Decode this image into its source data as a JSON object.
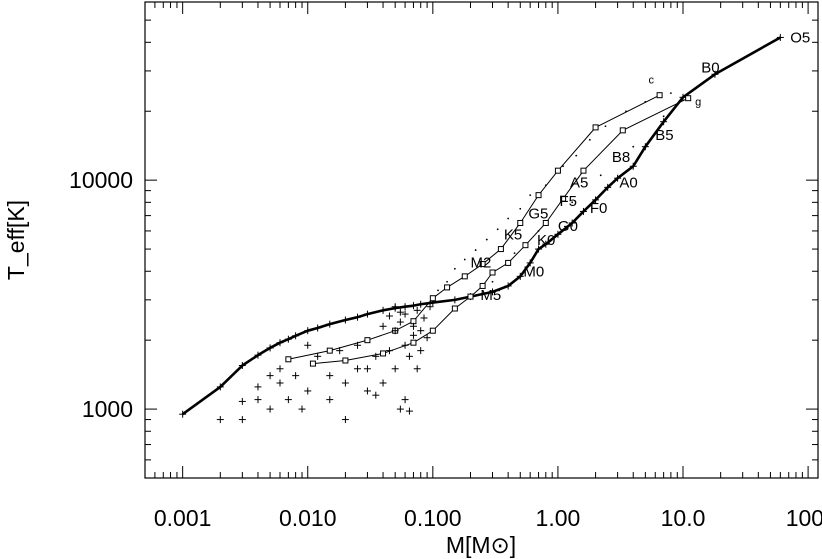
{
  "chart_data": {
    "type": "scatter",
    "title": "",
    "xlabel": "M[M⊙]",
    "ylabel": "T_eff[K]",
    "xscale": "log",
    "yscale": "log",
    "xlim": [
      0.0005,
      120
    ],
    "ylim": [
      500,
      60000
    ],
    "grid": false,
    "x_tick_labels": [
      {
        "value": 0.001,
        "label": "0.001"
      },
      {
        "value": 0.01,
        "label": "0.010"
      },
      {
        "value": 0.1,
        "label": "0.100"
      },
      {
        "value": 1,
        "label": "1.00"
      },
      {
        "value": 10,
        "label": "10.0"
      },
      {
        "value": 100,
        "label": "100."
      }
    ],
    "y_tick_labels": [
      {
        "value": 1000,
        "label": "1000"
      },
      {
        "value": 10000,
        "label": "10000"
      }
    ],
    "series": [
      {
        "kind": "thick-line",
        "marker": "plus",
        "points": [
          [
            0.001,
            950
          ],
          [
            0.002,
            1250
          ],
          [
            0.003,
            1550
          ],
          [
            0.004,
            1720
          ],
          [
            0.005,
            1850
          ],
          [
            0.006,
            1950
          ],
          [
            0.007,
            2020
          ],
          [
            0.008,
            2090
          ],
          [
            0.01,
            2200
          ],
          [
            0.012,
            2260
          ],
          [
            0.015,
            2350
          ],
          [
            0.02,
            2450
          ],
          [
            0.025,
            2520
          ],
          [
            0.03,
            2600
          ],
          [
            0.04,
            2700
          ],
          [
            0.05,
            2760
          ],
          [
            0.06,
            2800
          ],
          [
            0.07,
            2830
          ],
          [
            0.08,
            2870
          ],
          [
            0.1,
            2920
          ],
          [
            0.15,
            3000
          ],
          [
            0.2,
            3100
          ],
          [
            0.3,
            3250
          ],
          [
            0.4,
            3450
          ],
          [
            0.5,
            3800
          ],
          [
            0.6,
            4350
          ],
          [
            0.7,
            5000
          ],
          [
            0.8,
            5250
          ],
          [
            1.0,
            5800
          ],
          [
            1.3,
            6500
          ],
          [
            1.6,
            7300
          ],
          [
            2.0,
            8200
          ],
          [
            2.5,
            9300
          ],
          [
            3.0,
            10200
          ],
          [
            4.0,
            11500
          ],
          [
            5.0,
            14000
          ],
          [
            7.0,
            18000
          ],
          [
            10.0,
            23000
          ],
          [
            18.0,
            29000
          ],
          [
            60.0,
            42000
          ]
        ]
      },
      {
        "kind": "thin-line",
        "name_label": "c",
        "marker": "square",
        "points": [
          [
            0.007,
            1650
          ],
          [
            0.015,
            1800
          ],
          [
            0.03,
            2000
          ],
          [
            0.05,
            2200
          ],
          [
            0.07,
            2420
          ],
          [
            0.1,
            3050
          ],
          [
            0.13,
            3400
          ],
          [
            0.18,
            3800
          ],
          [
            0.25,
            4300
          ],
          [
            0.35,
            5000
          ],
          [
            0.5,
            6500
          ],
          [
            0.7,
            8600
          ],
          [
            1.0,
            11000
          ],
          [
            2.0,
            17000
          ],
          [
            6.5,
            23500
          ]
        ]
      },
      {
        "kind": "thin-line",
        "name_label": "g",
        "marker": "square",
        "points": [
          [
            0.011,
            1580
          ],
          [
            0.02,
            1630
          ],
          [
            0.04,
            1750
          ],
          [
            0.07,
            1950
          ],
          [
            0.1,
            2200
          ],
          [
            0.15,
            2750
          ],
          [
            0.2,
            3100
          ],
          [
            0.25,
            3450
          ],
          [
            0.3,
            3950
          ],
          [
            0.4,
            4350
          ],
          [
            0.55,
            5200
          ],
          [
            0.8,
            6500
          ],
          [
            1.1,
            8300
          ],
          [
            1.6,
            11000
          ],
          [
            3.3,
            16500
          ],
          [
            11.0,
            22800
          ]
        ]
      },
      {
        "kind": "scatter",
        "marker": "plus",
        "points": [
          [
            0.002,
            900
          ],
          [
            0.003,
            900
          ],
          [
            0.003,
            1080
          ],
          [
            0.004,
            1250
          ],
          [
            0.004,
            1100
          ],
          [
            0.005,
            1400
          ],
          [
            0.005,
            1000
          ],
          [
            0.006,
            1300
          ],
          [
            0.006,
            1500
          ],
          [
            0.007,
            1100
          ],
          [
            0.008,
            1400
          ],
          [
            0.009,
            1000
          ],
          [
            0.01,
            1200
          ],
          [
            0.01,
            1900
          ],
          [
            0.012,
            1700
          ],
          [
            0.015,
            1400
          ],
          [
            0.015,
            1100
          ],
          [
            0.018,
            1800
          ],
          [
            0.02,
            900
          ],
          [
            0.02,
            1300
          ],
          [
            0.025,
            1500
          ],
          [
            0.025,
            1900
          ],
          [
            0.03,
            1200
          ],
          [
            0.03,
            1500
          ],
          [
            0.035,
            1700
          ],
          [
            0.035,
            1150
          ],
          [
            0.04,
            1300
          ],
          [
            0.045,
            1800
          ],
          [
            0.05,
            1500
          ],
          [
            0.05,
            2200
          ],
          [
            0.055,
            1000
          ],
          [
            0.055,
            2400
          ],
          [
            0.06,
            1100
          ],
          [
            0.06,
            1900
          ],
          [
            0.06,
            2600
          ],
          [
            0.065,
            1700
          ],
          [
            0.07,
            2100
          ],
          [
            0.07,
            2300
          ],
          [
            0.075,
            1500
          ],
          [
            0.075,
            2700
          ],
          [
            0.08,
            1800
          ],
          [
            0.08,
            2200
          ],
          [
            0.085,
            2500
          ],
          [
            0.09,
            2050
          ],
          [
            0.095,
            2800
          ],
          [
            0.05,
            2800
          ],
          [
            0.055,
            2650
          ],
          [
            0.045,
            2550
          ],
          [
            0.065,
            980
          ],
          [
            0.04,
            2300
          ]
        ]
      },
      {
        "kind": "dotted-scatter",
        "marker": "dot",
        "points": [
          [
            0.11,
            3300
          ],
          [
            0.13,
            3600
          ],
          [
            0.15,
            4100
          ],
          [
            0.18,
            4500
          ],
          [
            0.22,
            4950
          ],
          [
            0.27,
            5500
          ],
          [
            0.33,
            6100
          ],
          [
            0.4,
            6800
          ],
          [
            0.5,
            7500
          ],
          [
            0.6,
            8600
          ],
          [
            0.8,
            9500
          ],
          [
            1.1,
            11500
          ],
          [
            1.4,
            12800
          ],
          [
            1.8,
            15000
          ],
          [
            2.4,
            17200
          ],
          [
            3.5,
            20000
          ],
          [
            5.0,
            22000
          ],
          [
            8.0,
            24000
          ],
          [
            0.3,
            3600
          ],
          [
            0.45,
            4800
          ],
          [
            0.7,
            6000
          ],
          [
            1.3,
            8000
          ],
          [
            2.2,
            10500
          ],
          [
            4.0,
            14000
          ],
          [
            7.0,
            19000
          ]
        ]
      }
    ],
    "annotations": [
      {
        "text": "O5",
        "x": 72,
        "y": 40000
      },
      {
        "text": "B0",
        "x": 14,
        "y": 29500
      },
      {
        "text": "B5",
        "x": 6.0,
        "y": 15000
      },
      {
        "text": "B8",
        "x": 2.7,
        "y": 12000
      },
      {
        "text": "A0",
        "x": 3.1,
        "y": 9300
      },
      {
        "text": "A5",
        "x": 1.25,
        "y": 9300
      },
      {
        "text": "F5",
        "x": 1.03,
        "y": 7700
      },
      {
        "text": "F0",
        "x": 1.8,
        "y": 7200
      },
      {
        "text": "G5",
        "x": 0.58,
        "y": 6800
      },
      {
        "text": "G0",
        "x": 1.0,
        "y": 6000
      },
      {
        "text": "K5",
        "x": 0.37,
        "y": 5500
      },
      {
        "text": "K0",
        "x": 0.68,
        "y": 5200
      },
      {
        "text": "M2",
        "x": 0.2,
        "y": 4150
      },
      {
        "text": "M0",
        "x": 0.53,
        "y": 3800
      },
      {
        "text": "M5",
        "x": 0.24,
        "y": 3000
      },
      {
        "text": "c",
        "x": 5.3,
        "y": 26500
      },
      {
        "text": "g",
        "x": 12.5,
        "y": 21200
      }
    ]
  }
}
